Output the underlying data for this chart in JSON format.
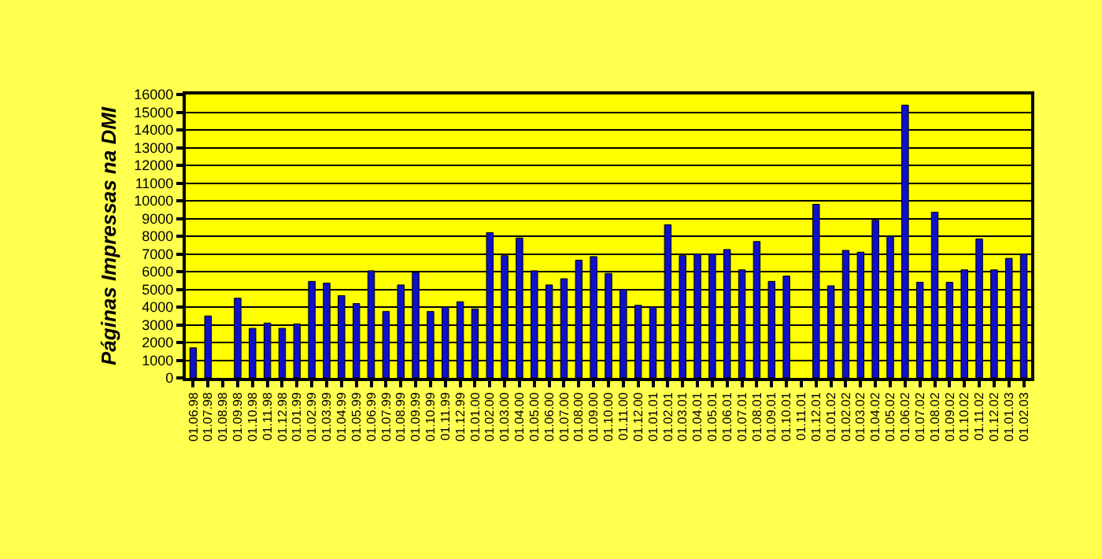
{
  "chart_data": {
    "type": "bar",
    "ylabel": "Páginas Impressas na DMI",
    "categories": [
      "01.06.98",
      "01.07.98",
      "01.08.98",
      "01.09.98",
      "01.10.98",
      "01.11.98",
      "01.12.98",
      "01.01.99",
      "01.02.99",
      "01.03.99",
      "01.04.99",
      "01.05.99",
      "01.06.99",
      "01.07.99",
      "01.08.99",
      "01.09.99",
      "01.10.99",
      "01.11.99",
      "01.12.99",
      "01.01.00",
      "01.02.00",
      "01.03.00",
      "01.04.00",
      "01.05.00",
      "01.06.00",
      "01.07.00",
      "01.08.00",
      "01.09.00",
      "01.10.00",
      "01.11.00",
      "01.12.00",
      "01.01.01",
      "01.02.01",
      "01.03.01",
      "01.04.01",
      "01.05.01",
      "01.06.01",
      "01.07.01",
      "01.08.01",
      "01.09.01",
      "01.10.01",
      "01.11.01",
      "01.12.01",
      "01.01.02",
      "01.02.02",
      "01.03.02",
      "01.04.02",
      "01.05.02",
      "01.06.02",
      "01.07.02",
      "01.08.02",
      "01.09.02",
      "01.10.02",
      "01.11.02",
      "01.12.02",
      "01.01.03",
      "01.02.03"
    ],
    "values": [
      1700,
      3500,
      null,
      4500,
      2800,
      3100,
      2800,
      3050,
      5450,
      5350,
      4650,
      4200,
      6050,
      3750,
      5250,
      5950,
      3750,
      4000,
      4300,
      3900,
      8200,
      6900,
      7900,
      6050,
      5250,
      5600,
      6650,
      6850,
      5900,
      5000,
      4100,
      4000,
      8650,
      6900,
      7000,
      7000,
      7250,
      6100,
      7700,
      5450,
      5750,
      null,
      9800,
      5200,
      7200,
      7100,
      8900,
      8000,
      15400,
      5400,
      9350,
      5400,
      6100,
      7850,
      6100,
      6750,
      7000
    ],
    "color": "#1010c8",
    "ylim": [
      0,
      16000
    ],
    "yticks": [
      0,
      1000,
      2000,
      3000,
      4000,
      5000,
      6000,
      7000,
      8000,
      9000,
      10000,
      11000,
      12000,
      13000,
      14000,
      15000,
      16000
    ],
    "grid": "y",
    "legend": false
  }
}
